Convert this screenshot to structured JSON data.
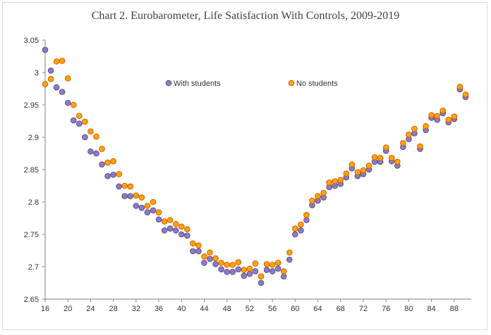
{
  "chart_data": {
    "type": "scatter",
    "title": "Chart 2.  Eurobarometer, Life Satisfaction With Controls, 2009-2019",
    "xlabel": "",
    "ylabel": "",
    "xlim": [
      16,
      91
    ],
    "ylim": [
      2.65,
      3.05
    ],
    "x_ticks": [
      16,
      20,
      24,
      28,
      32,
      36,
      40,
      44,
      48,
      52,
      56,
      60,
      64,
      68,
      72,
      76,
      80,
      84,
      88
    ],
    "y_ticks": [
      2.65,
      2.7,
      2.75,
      2.8,
      2.85,
      2.9,
      2.95,
      3,
      3.05
    ],
    "y_tick_labels": [
      "2.65",
      "2.7",
      "2.75",
      "2.8",
      "2.85",
      "2.9",
      "2.95",
      "3",
      "3.05"
    ],
    "legend": "top-center",
    "x": [
      16,
      17,
      18,
      19,
      20,
      21,
      22,
      23,
      24,
      25,
      26,
      27,
      28,
      29,
      30,
      31,
      32,
      33,
      34,
      35,
      36,
      37,
      38,
      39,
      40,
      41,
      42,
      43,
      44,
      45,
      46,
      47,
      48,
      49,
      50,
      51,
      52,
      53,
      54,
      55,
      56,
      57,
      58,
      59,
      60,
      61,
      62,
      63,
      64,
      65,
      66,
      67,
      68,
      69,
      70,
      71,
      72,
      73,
      74,
      75,
      76,
      77,
      78,
      79,
      80,
      81,
      82,
      83,
      84,
      85,
      86,
      87,
      88,
      89,
      90
    ],
    "series": [
      {
        "name": "With students",
        "color": "#8e7cc3",
        "edge": "#5b4a8a",
        "values": [
          3.035,
          3.003,
          2.977,
          2.97,
          2.953,
          2.926,
          2.921,
          2.9,
          2.878,
          2.875,
          2.858,
          2.84,
          2.842,
          2.824,
          2.809,
          2.809,
          2.794,
          2.791,
          2.784,
          2.787,
          2.773,
          2.756,
          2.759,
          2.756,
          2.75,
          2.748,
          2.724,
          2.724,
          2.706,
          2.712,
          2.704,
          2.696,
          2.692,
          2.692,
          2.696,
          2.686,
          2.689,
          2.693,
          2.675,
          2.695,
          2.693,
          2.697,
          2.685,
          2.711,
          2.75,
          2.756,
          2.772,
          2.795,
          2.802,
          2.807,
          2.823,
          2.825,
          2.828,
          2.838,
          2.852,
          2.84,
          2.843,
          2.85,
          2.862,
          2.862,
          2.879,
          2.863,
          2.856,
          2.885,
          2.897,
          2.906,
          2.882,
          2.911,
          2.93,
          2.927,
          2.937,
          2.923,
          2.928,
          2.974,
          2.962
        ]
      },
      {
        "name": "No students",
        "color": "#ffa500",
        "edge": "#d05a00",
        "values": [
          2.982,
          2.99,
          3.017,
          3.018,
          2.991,
          2.95,
          2.933,
          2.924,
          2.909,
          2.901,
          2.882,
          2.861,
          2.863,
          2.843,
          2.825,
          2.824,
          2.81,
          2.807,
          2.794,
          2.8,
          2.784,
          2.77,
          2.772,
          2.766,
          2.762,
          2.758,
          2.736,
          2.733,
          2.716,
          2.722,
          2.713,
          2.706,
          2.703,
          2.703,
          2.707,
          2.695,
          2.697,
          2.705,
          2.685,
          2.704,
          2.703,
          2.706,
          2.693,
          2.722,
          2.759,
          2.765,
          2.78,
          2.802,
          2.809,
          2.814,
          2.83,
          2.832,
          2.834,
          2.844,
          2.858,
          2.846,
          2.849,
          2.856,
          2.869,
          2.868,
          2.884,
          2.868,
          2.862,
          2.891,
          2.904,
          2.913,
          2.886,
          2.917,
          2.934,
          2.933,
          2.941,
          2.927,
          2.932,
          2.978,
          2.966
        ]
      }
    ]
  }
}
